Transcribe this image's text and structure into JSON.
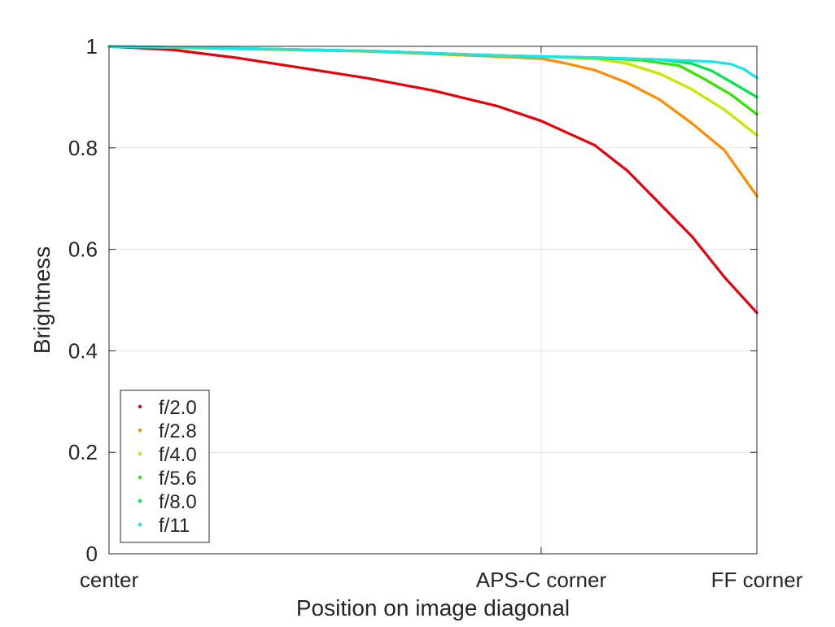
{
  "chart_data": {
    "type": "line",
    "xlabel": "Position on image diagonal",
    "ylabel": "Brightness",
    "x_ticks": [
      {
        "label": "center",
        "value": 0
      },
      {
        "label": "APS-C corner",
        "value": 0.667
      },
      {
        "label": "FF corner",
        "value": 1
      }
    ],
    "xlim": [
      0,
      1
    ],
    "ylim": [
      0,
      1
    ],
    "y_ticks": [
      0,
      0.2,
      0.4,
      0.6,
      0.8,
      1
    ],
    "y_tick_labels": [
      "0",
      "0.2",
      "0.4",
      "0.6",
      "0.8",
      "1"
    ],
    "grid": true,
    "legend_position": "bottom-left",
    "series": [
      {
        "name": "f/2.0",
        "color": "#e8000b",
        "x": [
          0,
          0.1,
          0.2,
          0.3,
          0.4,
          0.5,
          0.6,
          0.667,
          0.75,
          0.8,
          0.85,
          0.9,
          0.95,
          1.0
        ],
        "y": [
          1.0,
          0.993,
          0.977,
          0.957,
          0.937,
          0.913,
          0.882,
          0.853,
          0.805,
          0.755,
          0.69,
          0.625,
          0.545,
          0.475
        ]
      },
      {
        "name": "f/2.8",
        "color": "#ff8c00",
        "x": [
          0,
          0.2,
          0.4,
          0.6,
          0.667,
          0.7,
          0.75,
          0.8,
          0.85,
          0.9,
          0.95,
          1.0
        ],
        "y": [
          1.0,
          0.995,
          0.99,
          0.98,
          0.976,
          0.968,
          0.953,
          0.928,
          0.895,
          0.848,
          0.795,
          0.705
        ]
      },
      {
        "name": "f/4.0",
        "color": "#c8e600",
        "x": [
          0,
          0.2,
          0.4,
          0.6,
          0.667,
          0.75,
          0.8,
          0.85,
          0.9,
          0.95,
          1.0
        ],
        "y": [
          1.0,
          0.996,
          0.991,
          0.982,
          0.98,
          0.976,
          0.966,
          0.946,
          0.915,
          0.875,
          0.825
        ]
      },
      {
        "name": "f/5.6",
        "color": "#32e600",
        "x": [
          0,
          0.2,
          0.4,
          0.6,
          0.667,
          0.75,
          0.82,
          0.88,
          0.92,
          0.96,
          1.0
        ],
        "y": [
          1.0,
          0.996,
          0.991,
          0.982,
          0.98,
          0.977,
          0.973,
          0.962,
          0.935,
          0.905,
          0.866
        ]
      },
      {
        "name": "f/8.0",
        "color": "#00e650",
        "x": [
          0,
          0.2,
          0.4,
          0.6,
          0.667,
          0.75,
          0.85,
          0.9,
          0.93,
          0.96,
          1.0
        ],
        "y": [
          1.0,
          0.996,
          0.991,
          0.982,
          0.98,
          0.978,
          0.974,
          0.966,
          0.952,
          0.93,
          0.9
        ]
      },
      {
        "name": "f/11",
        "color": "#19e6e6",
        "x": [
          0,
          0.2,
          0.4,
          0.6,
          0.667,
          0.75,
          0.85,
          0.93,
          0.96,
          0.98,
          1.0
        ],
        "y": [
          1.0,
          0.996,
          0.991,
          0.982,
          0.98,
          0.978,
          0.974,
          0.97,
          0.965,
          0.955,
          0.938
        ]
      }
    ]
  }
}
